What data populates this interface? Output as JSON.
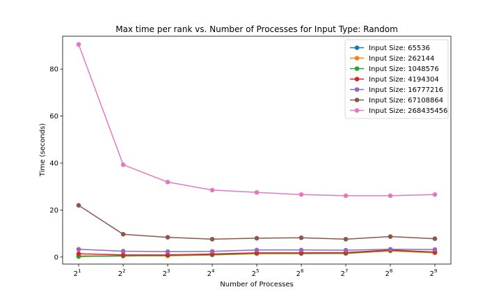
{
  "chart_data": {
    "type": "line",
    "title": "Max time per rank vs. Number of Processes for Input Type: Random",
    "xlabel": "Number of Processes",
    "ylabel": "Time (seconds)",
    "x": [
      2,
      4,
      8,
      16,
      32,
      64,
      128,
      256,
      512
    ],
    "x_tick_labels": [
      {
        "base": "2",
        "exp": "1"
      },
      {
        "base": "2",
        "exp": "2"
      },
      {
        "base": "2",
        "exp": "3"
      },
      {
        "base": "2",
        "exp": "4"
      },
      {
        "base": "2",
        "exp": "5"
      },
      {
        "base": "2",
        "exp": "6"
      },
      {
        "base": "2",
        "exp": "7"
      },
      {
        "base": "2",
        "exp": "8"
      },
      {
        "base": "2",
        "exp": "9"
      }
    ],
    "x_scale": "log2",
    "ylim": [
      -3,
      94
    ],
    "y_ticks": [
      0,
      20,
      40,
      60,
      80
    ],
    "legend_position": "top-right",
    "grid": false,
    "series": [
      {
        "name": "Input Size: 65536",
        "color": "#1f77b4",
        "values": [
          0.3,
          0.4,
          0.6,
          0.9,
          1.5,
          1.6,
          1.6,
          2.7,
          1.9
        ]
      },
      {
        "name": "Input Size: 262144",
        "color": "#ff7f0e",
        "values": [
          0.5,
          0.5,
          0.5,
          0.9,
          1.4,
          1.5,
          1.5,
          2.6,
          1.8
        ]
      },
      {
        "name": "Input Size: 1048576",
        "color": "#2ca02c",
        "values": [
          0.2,
          0.6,
          0.7,
          1.0,
          1.6,
          1.5,
          1.6,
          2.8,
          2.0
        ]
      },
      {
        "name": "Input Size: 4194304",
        "color": "#d62728",
        "values": [
          1.4,
          0.9,
          0.9,
          1.3,
          1.8,
          1.8,
          1.9,
          3.0,
          2.1
        ]
      },
      {
        "name": "Input Size: 16777216",
        "color": "#9467bd",
        "values": [
          3.3,
          2.5,
          2.3,
          2.4,
          3.0,
          3.0,
          2.9,
          3.3,
          3.2
        ]
      },
      {
        "name": "Input Size: 67108864",
        "color": "#8c564b",
        "values": [
          22.0,
          9.7,
          8.4,
          7.6,
          8.0,
          8.2,
          7.6,
          8.7,
          7.8
        ]
      },
      {
        "name": "Input Size: 268435456",
        "color": "#e377c2",
        "values": [
          90.5,
          39.3,
          31.9,
          28.5,
          27.5,
          26.6,
          26.1,
          26.1,
          26.6
        ]
      }
    ]
  }
}
